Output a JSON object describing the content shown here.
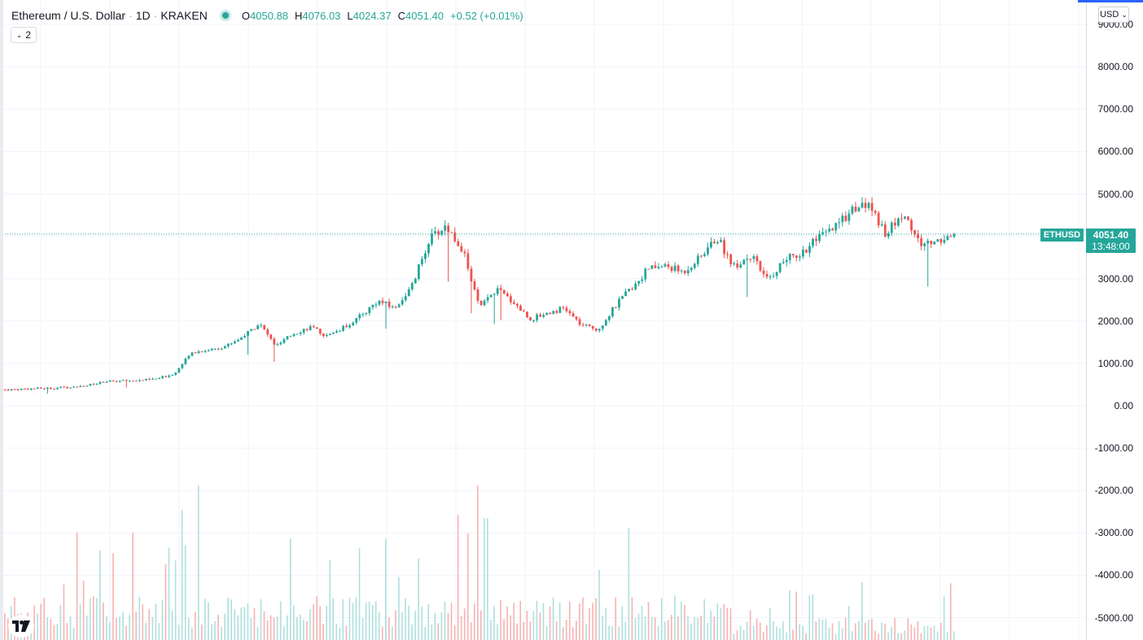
{
  "legend": {
    "symbol": "Ethereum / U.S. Dollar",
    "interval": "1D",
    "exchange": "KRAKEN",
    "open_label": "O",
    "open": "4050.88",
    "high_label": "H",
    "high": "4076.03",
    "low_label": "L",
    "low": "4024.37",
    "close_label": "C",
    "close": "4051.40",
    "change": "+0.52 (+0.01%)",
    "collapse_count": "2"
  },
  "currency": "USD",
  "price_tag": {
    "symbol": "ETHUSD",
    "price": "4051.40",
    "countdown": "13:48:00"
  },
  "colors": {
    "up": "#26a69a",
    "down": "#ef5350",
    "grid": "#f0f3fa",
    "accent": "#2962ff"
  },
  "icons": {
    "logo": "tradingview-logo-icon",
    "dropdown": "chevron-down-icon"
  },
  "chart_data": {
    "type": "candlestick",
    "series_name": "ETHUSD",
    "y_axis_ticks": [
      "9000.00",
      "8000.00",
      "7000.00",
      "6000.00",
      "5000.00",
      "4000.00",
      "3000.00",
      "2000.00",
      "1000.00",
      "0.00",
      "-1000.00",
      "-2000.00",
      "-3000.00",
      "-4000.00",
      "-5000.00"
    ],
    "ylim": [
      -5250,
      9000
    ],
    "last_price": 4051.4,
    "price_path": [
      380,
      395,
      410,
      420,
      455,
      490,
      570,
      590,
      600,
      640,
      760,
      1250,
      1320,
      1410,
      1620,
      1950,
      1400,
      1700,
      1860,
      1640,
      1850,
      2120,
      2480,
      2300,
      2800,
      3900,
      4250,
      3700,
      2300,
      2750,
      2450,
      2040,
      2200,
      2300,
      1900,
      1800,
      2350,
      2800,
      3250,
      3300,
      3150,
      3500,
      3970,
      3300,
      3550,
      2950,
      3450,
      3600,
      3950,
      4200,
      4650,
      4750,
      4050,
      4550,
      3800,
      3900,
      4051
    ],
    "volume_pattern": "spiky, highest near 2021-01 and 2021-05 peaks, taper afterward",
    "grid": true,
    "legend_position": "top-left"
  }
}
